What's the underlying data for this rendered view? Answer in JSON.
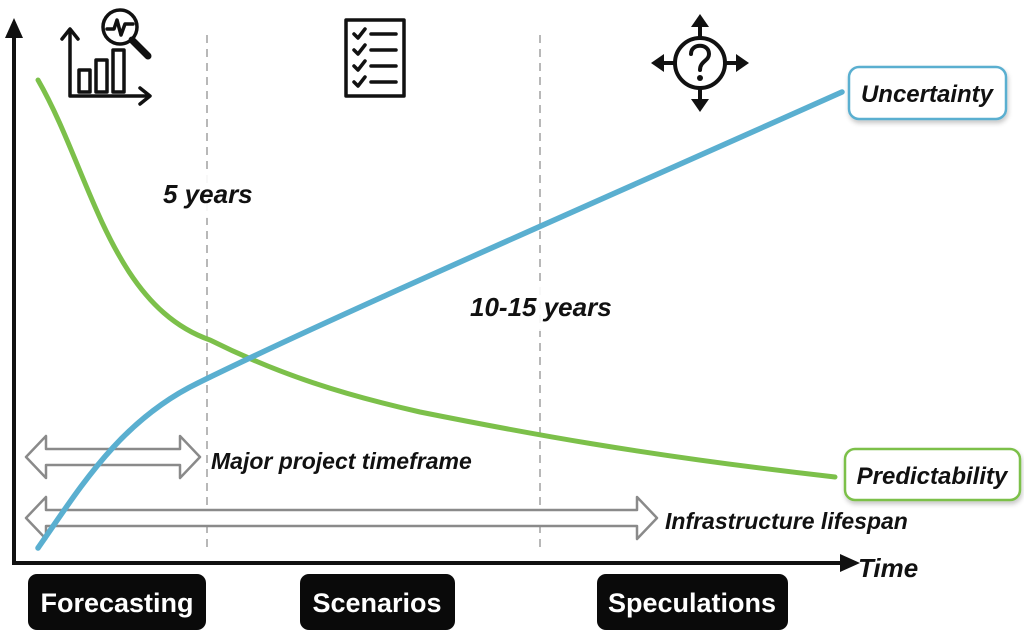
{
  "axis": {
    "x_label": "Time"
  },
  "periods": {
    "short": "5 years",
    "long": "10-15 years"
  },
  "curves": {
    "uncertainty": {
      "label": "Uncertainty",
      "color": "#5aafd0"
    },
    "predictability": {
      "label": "Predictability",
      "color": "#7cc04a"
    }
  },
  "spans": {
    "project": "Major project timeframe",
    "infrastructure": "Infrastructure lifespan"
  },
  "phases": [
    "Forecasting",
    "Scenarios",
    "Speculations"
  ],
  "icons": [
    "chart-analysis-icon",
    "checklist-icon",
    "question-arrows-icon"
  ]
}
